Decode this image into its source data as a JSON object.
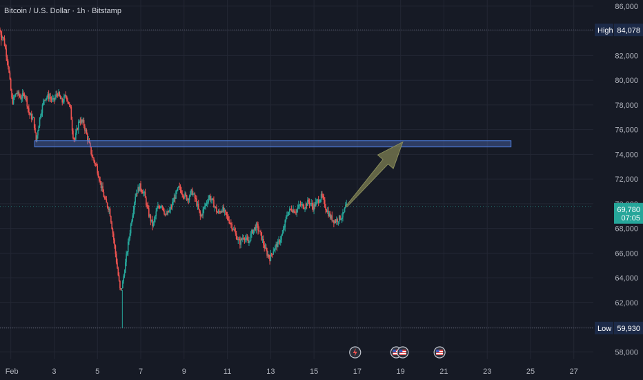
{
  "header": {
    "title": "Bitcoin / U.S. Dollar · 1h · Bitstamp"
  },
  "colors": {
    "background": "#161a25",
    "grid": "#232734",
    "text": "#b2b5be",
    "up": "#26a69a",
    "down": "#ef5350",
    "zone_fill": "#5b7fd4",
    "zone_stroke": "#4f7fe0",
    "arrow_fill": "#6b6e4a",
    "high_label_bg": "#1c2a48",
    "price_label_bg": "#26a69a",
    "low_label_bg": "#1c2a48"
  },
  "chart_data": {
    "type": "candlestick",
    "title": "Bitcoin / U.S. Dollar · 1h · Bitstamp",
    "x_axis": {
      "ticks": [
        {
          "day": 1,
          "label": "Feb"
        },
        {
          "day": 3,
          "label": "3"
        },
        {
          "day": 5,
          "label": "5"
        },
        {
          "day": 7,
          "label": "7"
        },
        {
          "day": 9,
          "label": "9"
        },
        {
          "day": 11,
          "label": "11"
        },
        {
          "day": 13,
          "label": "13"
        },
        {
          "day": 15,
          "label": "15"
        },
        {
          "day": 17,
          "label": "17"
        },
        {
          "day": 19,
          "label": "19"
        },
        {
          "day": 21,
          "label": "21"
        },
        {
          "day": 23,
          "label": "23"
        },
        {
          "day": 25,
          "label": "25"
        },
        {
          "day": 27,
          "label": "27"
        }
      ],
      "range": [
        0.5,
        27.9
      ]
    },
    "y_axis": {
      "ticks": [
        58000,
        60000,
        62000,
        64000,
        66000,
        68000,
        70000,
        72000,
        74000,
        76000,
        78000,
        80000,
        82000,
        84000,
        86000
      ],
      "tick_labels": [
        "58,000",
        "60,000",
        "62,000",
        "64,000",
        "66,000",
        "68,000",
        "70,000",
        "72,000",
        "74,000",
        "76,000",
        "78,000",
        "80,000",
        "82,000",
        "84,000",
        "86,000"
      ],
      "range": [
        57400,
        86500
      ]
    },
    "grid": true,
    "price_path": [
      [
        0.5,
        84078
      ],
      [
        0.7,
        83400
      ],
      [
        0.9,
        81500
      ],
      [
        1.1,
        78200
      ],
      [
        1.3,
        79000
      ],
      [
        1.5,
        78600
      ],
      [
        1.7,
        78900
      ],
      [
        1.9,
        77200
      ],
      [
        2.1,
        76800
      ],
      [
        2.2,
        75000
      ],
      [
        2.4,
        77200
      ],
      [
        2.6,
        78600
      ],
      [
        2.8,
        78700
      ],
      [
        3.0,
        78300
      ],
      [
        3.2,
        79000
      ],
      [
        3.4,
        78200
      ],
      [
        3.6,
        78800
      ],
      [
        3.8,
        77600
      ],
      [
        3.9,
        75600
      ],
      [
        4.0,
        75200
      ],
      [
        4.2,
        76800
      ],
      [
        4.4,
        76500
      ],
      [
        4.6,
        75200
      ],
      [
        4.8,
        73800
      ],
      [
        5.0,
        73000
      ],
      [
        5.2,
        71500
      ],
      [
        5.4,
        70200
      ],
      [
        5.6,
        69500
      ],
      [
        5.8,
        67000
      ],
      [
        6.0,
        64200
      ],
      [
        6.1,
        62800
      ],
      [
        6.2,
        63500
      ],
      [
        6.4,
        66000
      ],
      [
        6.6,
        68500
      ],
      [
        6.8,
        70800
      ],
      [
        7.0,
        71400
      ],
      [
        7.2,
        70800
      ],
      [
        7.4,
        69200
      ],
      [
        7.6,
        68200
      ],
      [
        7.8,
        69600
      ],
      [
        8.0,
        70000
      ],
      [
        8.2,
        69000
      ],
      [
        8.4,
        69500
      ],
      [
        8.6,
        70500
      ],
      [
        8.8,
        71300
      ],
      [
        9.0,
        70800
      ],
      [
        9.2,
        70400
      ],
      [
        9.4,
        71000
      ],
      [
        9.6,
        70200
      ],
      [
        9.8,
        68900
      ],
      [
        10.0,
        69800
      ],
      [
        10.2,
        70600
      ],
      [
        10.4,
        70000
      ],
      [
        10.6,
        69200
      ],
      [
        10.8,
        69600
      ],
      [
        11.0,
        69000
      ],
      [
        11.2,
        68400
      ],
      [
        11.4,
        67600
      ],
      [
        11.6,
        66800
      ],
      [
        11.8,
        67400
      ],
      [
        12.0,
        66800
      ],
      [
        12.2,
        67800
      ],
      [
        12.4,
        68200
      ],
      [
        12.6,
        67400
      ],
      [
        12.8,
        66200
      ],
      [
        13.0,
        65600
      ],
      [
        13.2,
        66400
      ],
      [
        13.4,
        66800
      ],
      [
        13.6,
        67600
      ],
      [
        13.8,
        69200
      ],
      [
        14.0,
        69600
      ],
      [
        14.2,
        69400
      ],
      [
        14.4,
        69900
      ],
      [
        14.6,
        69800
      ],
      [
        14.8,
        70200
      ],
      [
        15.0,
        69700
      ],
      [
        15.2,
        70200
      ],
      [
        15.4,
        70600
      ],
      [
        15.6,
        69600
      ],
      [
        15.8,
        68900
      ],
      [
        16.0,
        68600
      ],
      [
        16.2,
        68800
      ],
      [
        16.4,
        69100
      ],
      [
        16.5,
        69780
      ]
    ],
    "high": {
      "label": "High",
      "value": 84078,
      "value_label": "84,078"
    },
    "low": {
      "label": "Low",
      "value": 59930,
      "value_label": "59,930"
    },
    "current_price": {
      "value": 69780,
      "value_label": "69,780",
      "countdown": "07:05"
    },
    "annotations": {
      "zone": {
        "x_start": 2.1,
        "x_end": 24.1,
        "y_low": 74600,
        "y_high": 75100
      },
      "arrow": {
        "from": [
          16.5,
          69780
        ],
        "to": [
          19.1,
          75000
        ]
      },
      "event_icons": [
        {
          "day": 16.9,
          "icon": "lightning-icon"
        },
        {
          "day": 18.8,
          "icon": "us-flag-icon"
        },
        {
          "day": 19.1,
          "icon": "us-flag-icon"
        },
        {
          "day": 20.8,
          "icon": "us-flag-icon"
        }
      ]
    }
  }
}
